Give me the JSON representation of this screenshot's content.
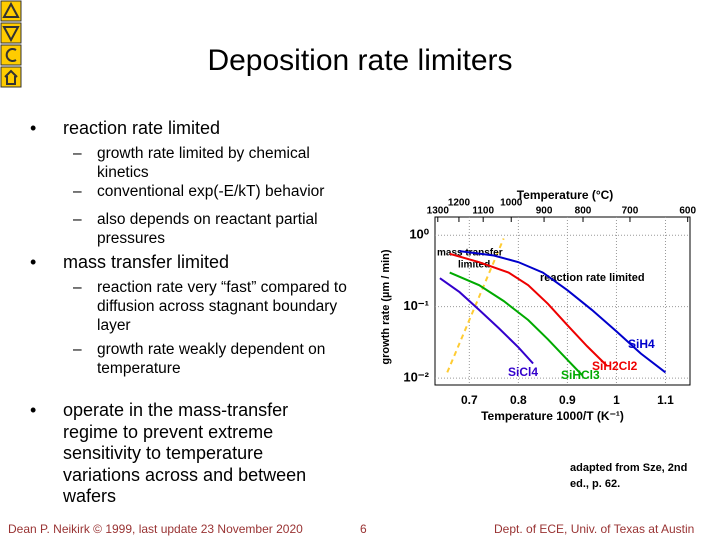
{
  "title": "Deposition rate limiters",
  "bullets": [
    {
      "text": "reaction rate limited",
      "sub": [
        "growth rate limited by chemical kinetics",
        "conventional exp(-E/kT) behavior",
        "also depends on reactant partial pressures"
      ]
    },
    {
      "text": "mass transfer limited",
      "sub": [
        "reaction rate very “fast” compared to diffusion across stagnant boundary layer",
        "growth rate weakly dependent on temperature"
      ]
    },
    {
      "text": "operate in the mass-transfer regime to prevent extreme sensitivity to temperature variations across and between wafers",
      "sub": []
    }
  ],
  "note": "adapted from Sze, 2nd ed., p. 62.",
  "footer": {
    "left": "Dean P. Neikirk © 1999, last update 23 November 2020",
    "page": "6",
    "right": "Dept. of ECE, Univ. of Texas at Austin"
  },
  "chart_data": {
    "type": "line",
    "x_label": "Temperature 1000/T (K⁻¹)",
    "x2_label": "Temperature (°C)",
    "y_label": "growth rate (µm / min)",
    "annotations": [
      "mass transfer",
      "limited",
      "reaction rate limited"
    ],
    "xlim": [
      0.63,
      1.15
    ],
    "xticks": [
      0.7,
      0.8,
      0.9,
      1.0,
      1.1
    ],
    "x2ticks": [
      1300,
      1200,
      1100,
      1000,
      900,
      800,
      700,
      600
    ],
    "ylim": [
      0.008,
      1.8
    ],
    "log_y": true,
    "grid": true,
    "yticks": [
      {
        "value": 1,
        "label": "10⁰"
      },
      {
        "value": 0.1,
        "label": "10⁻¹"
      },
      {
        "value": 0.01,
        "label": "10⁻²"
      }
    ],
    "series": [
      {
        "name": "SiH4",
        "color": "#0000cc",
        "x": [
          0.68,
          0.75,
          0.8,
          0.85,
          0.9,
          0.95,
          1.0,
          1.05,
          1.1
        ],
        "values": [
          0.6,
          0.52,
          0.42,
          0.3,
          0.17,
          0.09,
          0.045,
          0.022,
          0.012
        ]
      },
      {
        "name": "SiH2Cl2",
        "color": "#ee0000",
        "x": [
          0.66,
          0.72,
          0.78,
          0.82,
          0.86,
          0.9,
          0.94,
          0.98
        ],
        "values": [
          0.55,
          0.42,
          0.3,
          0.2,
          0.11,
          0.055,
          0.028,
          0.015
        ]
      },
      {
        "name": "SiHCl3",
        "color": "#00aa00",
        "x": [
          0.66,
          0.72,
          0.77,
          0.82,
          0.86,
          0.9,
          0.93
        ],
        "values": [
          0.3,
          0.2,
          0.12,
          0.065,
          0.035,
          0.018,
          0.011
        ]
      },
      {
        "name": "SiCl4",
        "color": "#3300cc",
        "x": [
          0.64,
          0.68,
          0.72,
          0.76,
          0.8,
          0.83
        ],
        "values": [
          0.25,
          0.16,
          0.09,
          0.05,
          0.027,
          0.016
        ]
      }
    ]
  }
}
